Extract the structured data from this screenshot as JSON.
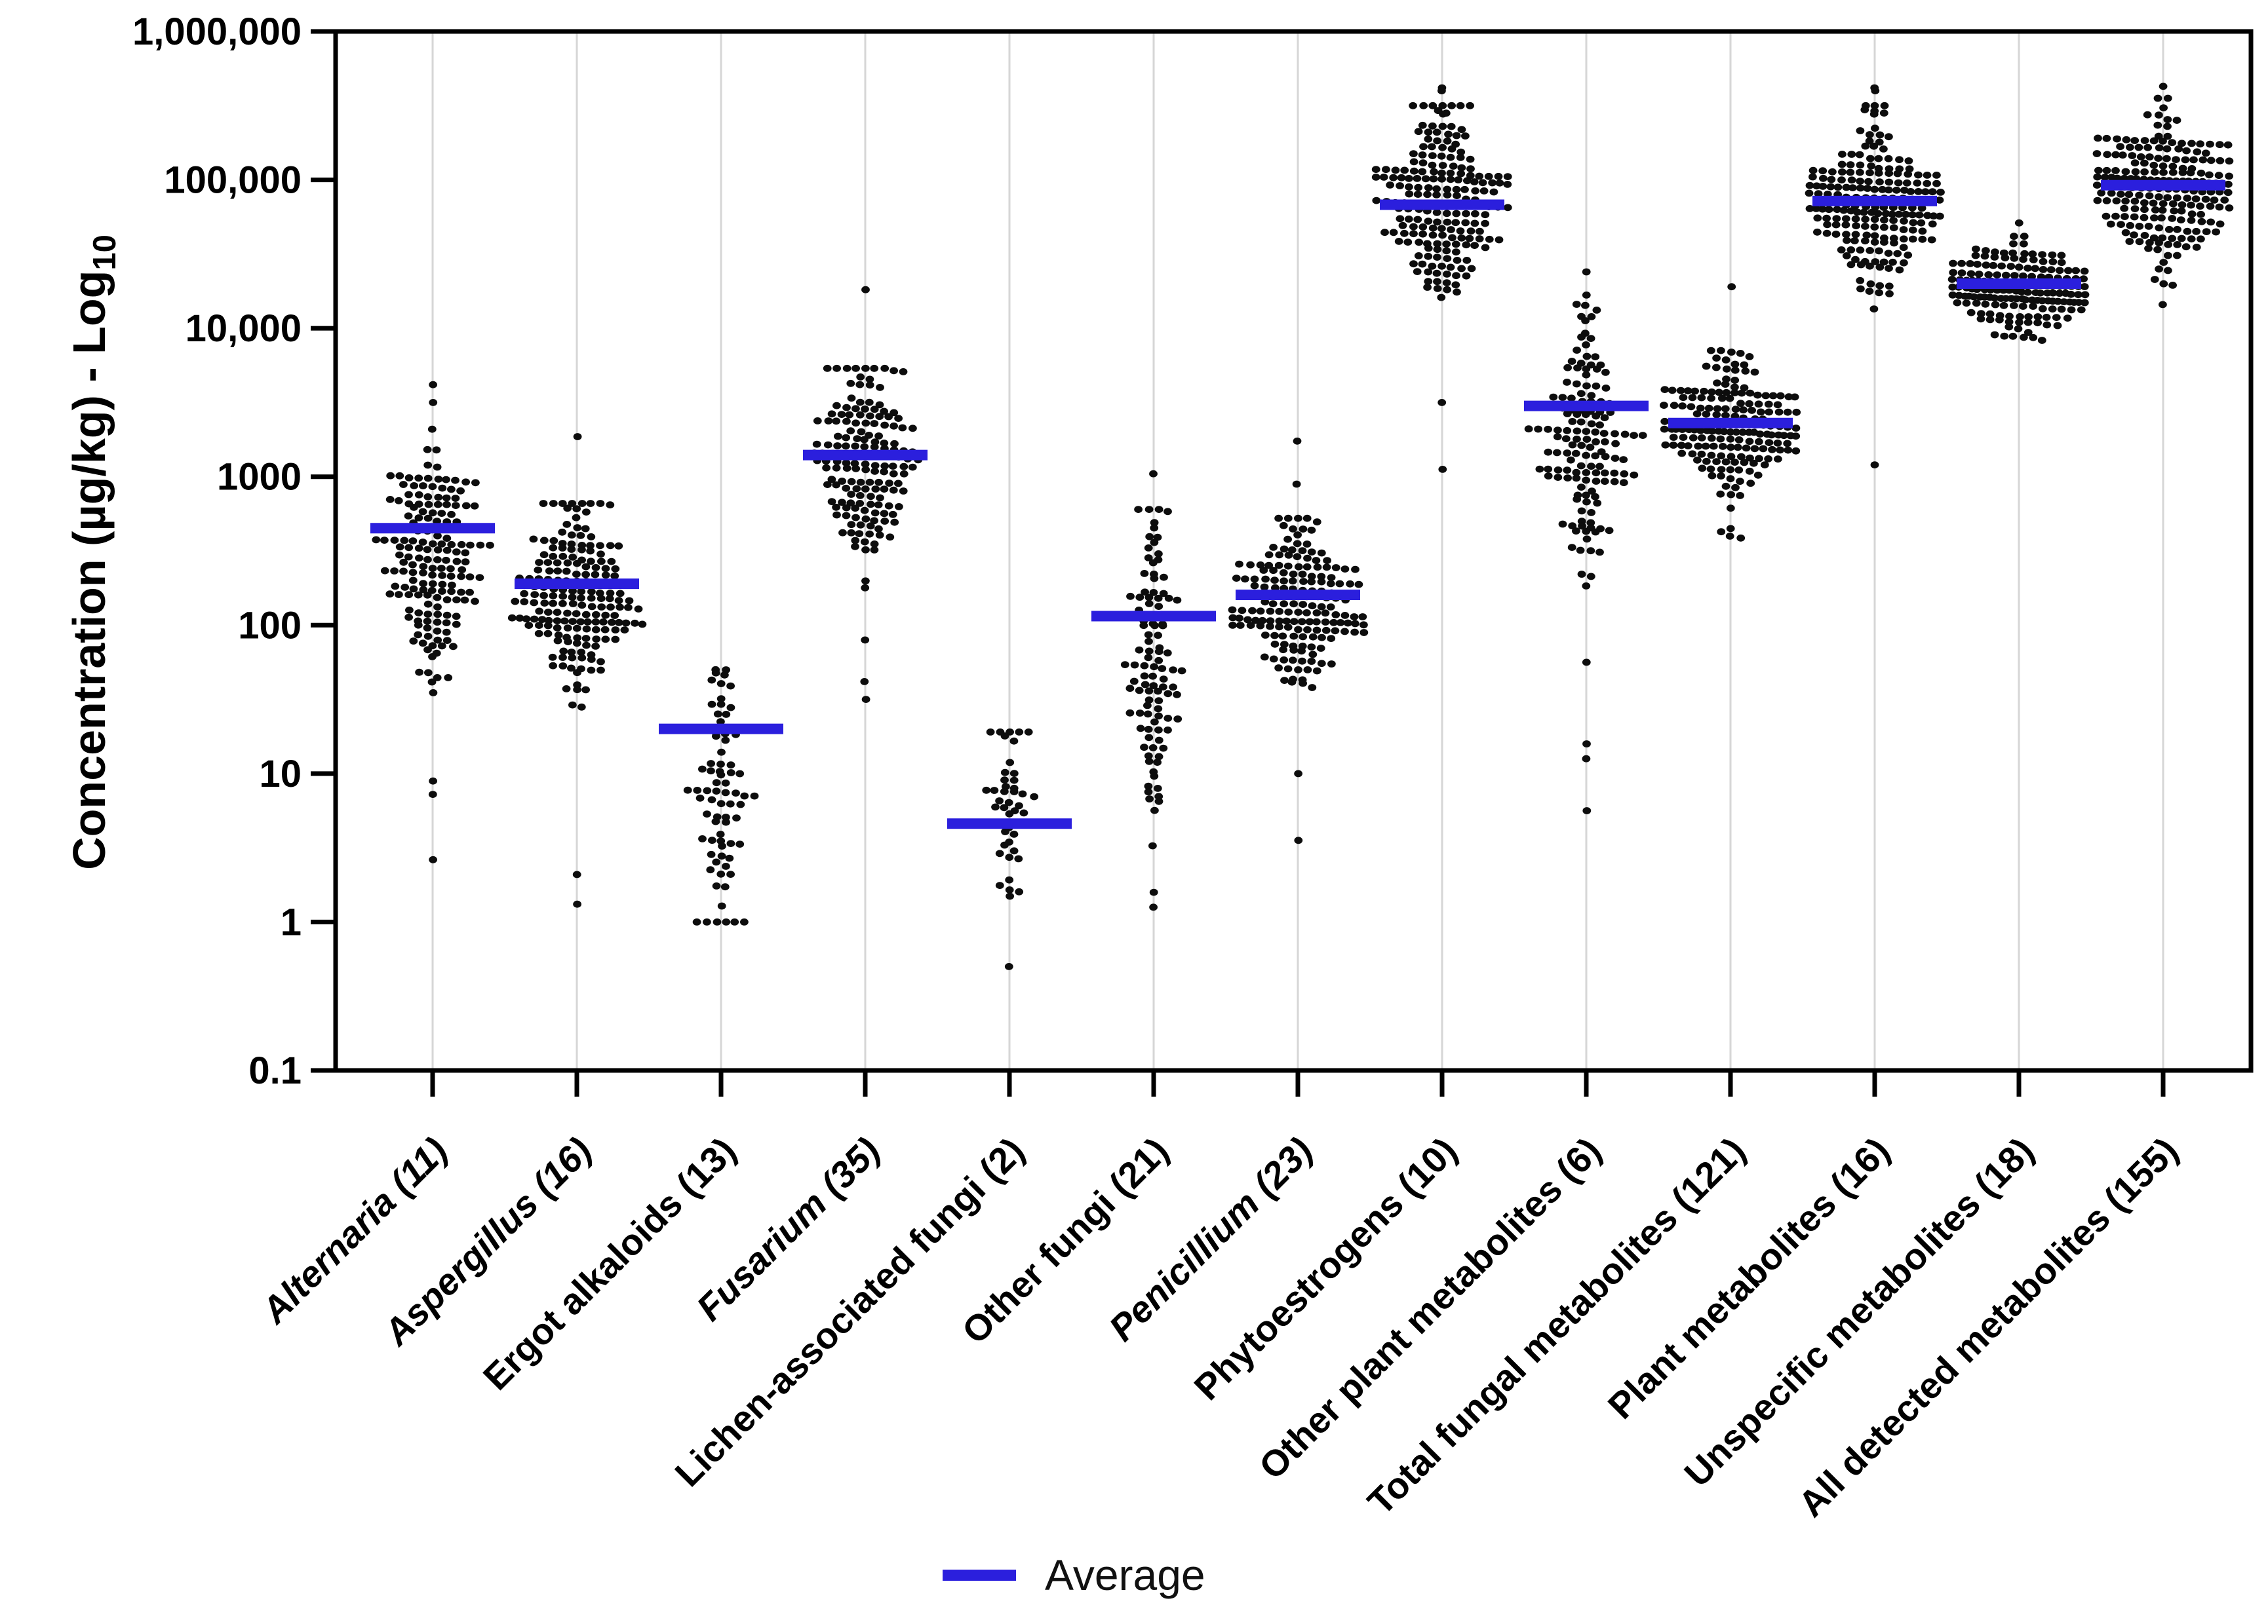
{
  "chart_data": {
    "type": "scatter",
    "subtype": "beeswarm-log",
    "title": "",
    "ylabel": {
      "text": "Concentration (µg/kg) - Log",
      "subscript": "10"
    },
    "xlabel": "",
    "ylim": [
      0.1,
      1000000
    ],
    "grid": "vertical-light-gray-per-category",
    "yticks": [
      {
        "label": "1,000,000",
        "value": 1000000
      },
      {
        "label": "100,000",
        "value": 100000
      },
      {
        "label": "10,000",
        "value": 10000
      },
      {
        "label": "1000",
        "value": 1000
      },
      {
        "label": "100",
        "value": 100
      },
      {
        "label": "10",
        "value": 10
      },
      {
        "label": "1",
        "value": 1
      },
      {
        "label": "0.1",
        "value": 0.1
      }
    ],
    "legend": {
      "label": "Average",
      "color": "#2b1fdd",
      "position": "bottom-center"
    },
    "colors": {
      "dot": "#0d0d0d",
      "average_line": "#2b1fdd",
      "gridline": "#d6d6d6",
      "frame": "#000000"
    },
    "categories": [
      {
        "label": "Alternaria (11)",
        "italic": true,
        "average": 450,
        "n_points": 165,
        "log_center": 2.45,
        "log_sd": 0.38,
        "log_min": 1.35,
        "log_max": 3.32,
        "outliers_log": [
          3.62,
          3.5,
          0.95,
          0.86,
          0.42
        ]
      },
      {
        "label": "Aspergillus (16)",
        "italic": true,
        "average": 190,
        "n_points": 185,
        "log_center": 2.2,
        "log_sd": 0.3,
        "log_min": 1.32,
        "log_max": 2.82,
        "outliers_log": [
          3.27,
          0.32,
          0.12
        ]
      },
      {
        "label": "Ergot alkaloids (13)",
        "italic": false,
        "average": 20,
        "n_points": 75,
        "log_center": 0.82,
        "log_sd": 0.5,
        "log_min": 0.0,
        "log_max": 1.7,
        "outliers_log": []
      },
      {
        "label": "Fusarium (35)",
        "italic": true,
        "average": 1400,
        "n_points": 160,
        "log_center": 3.1,
        "log_sd": 0.33,
        "log_min": 2.02,
        "log_max": 3.73,
        "outliers_log": [
          4.26,
          1.9,
          1.62,
          1.5
        ]
      },
      {
        "label": "Lichen-associated fungi (2)",
        "italic": false,
        "average": 4.6,
        "n_points": 42,
        "log_center": 0.72,
        "log_sd": 0.34,
        "log_min": 0.13,
        "log_max": 1.28,
        "outliers_log": [
          -0.3
        ]
      },
      {
        "label": "Other fungi (21)",
        "italic": false,
        "average": 115,
        "n_points": 105,
        "log_center": 1.72,
        "log_sd": 0.52,
        "log_min": 0.2,
        "log_max": 2.78,
        "outliers_log": [
          3.02,
          0.1
        ]
      },
      {
        "label": "Penicillium (23)",
        "italic": true,
        "average": 160,
        "n_points": 175,
        "log_center": 2.12,
        "log_sd": 0.27,
        "log_min": 1.47,
        "log_max": 2.72,
        "outliers_log": [
          3.24,
          2.95,
          1.0,
          0.55
        ]
      },
      {
        "label": "Phytoestrogens (10)",
        "italic": false,
        "average": 68000,
        "n_points": 195,
        "log_center": 4.85,
        "log_sd": 0.3,
        "log_min": 3.98,
        "log_max": 5.5,
        "outliers_log": [
          5.6,
          5.62,
          3.5,
          3.05
        ]
      },
      {
        "label": "Other plant metabolites (6)",
        "italic": false,
        "average": 3000,
        "n_points": 140,
        "log_center": 3.3,
        "log_sd": 0.42,
        "log_min": 2.1,
        "log_max": 4.3,
        "outliers_log": [
          4.38,
          1.75,
          1.2,
          1.1,
          0.75
        ]
      },
      {
        "label": "Total fungal metabolites (121)",
        "italic": false,
        "average": 2300,
        "n_points": 185,
        "log_center": 3.35,
        "log_sd": 0.23,
        "log_min": 2.55,
        "log_max": 3.85,
        "outliers_log": [
          4.28
        ]
      },
      {
        "label": "Plant metabolites (16)",
        "italic": false,
        "average": 72000,
        "n_points": 200,
        "log_center": 4.85,
        "log_sd": 0.29,
        "log_min": 3.9,
        "log_max": 5.5,
        "outliers_log": [
          5.6,
          5.62,
          3.08
        ]
      },
      {
        "label": "Unspecific metabolites (18)",
        "italic": false,
        "average": 20000,
        "n_points": 170,
        "log_center": 4.28,
        "log_sd": 0.17,
        "log_min": 3.55,
        "log_max": 4.62,
        "outliers_log": [
          4.71
        ]
      },
      {
        "label": "All detected metabolites (155)",
        "italic": false,
        "average": 92000,
        "n_points": 200,
        "log_center": 4.95,
        "log_sd": 0.26,
        "log_min": 4.3,
        "log_max": 5.55,
        "outliers_log": [
          5.63,
          4.29,
          4.16
        ]
      }
    ]
  }
}
